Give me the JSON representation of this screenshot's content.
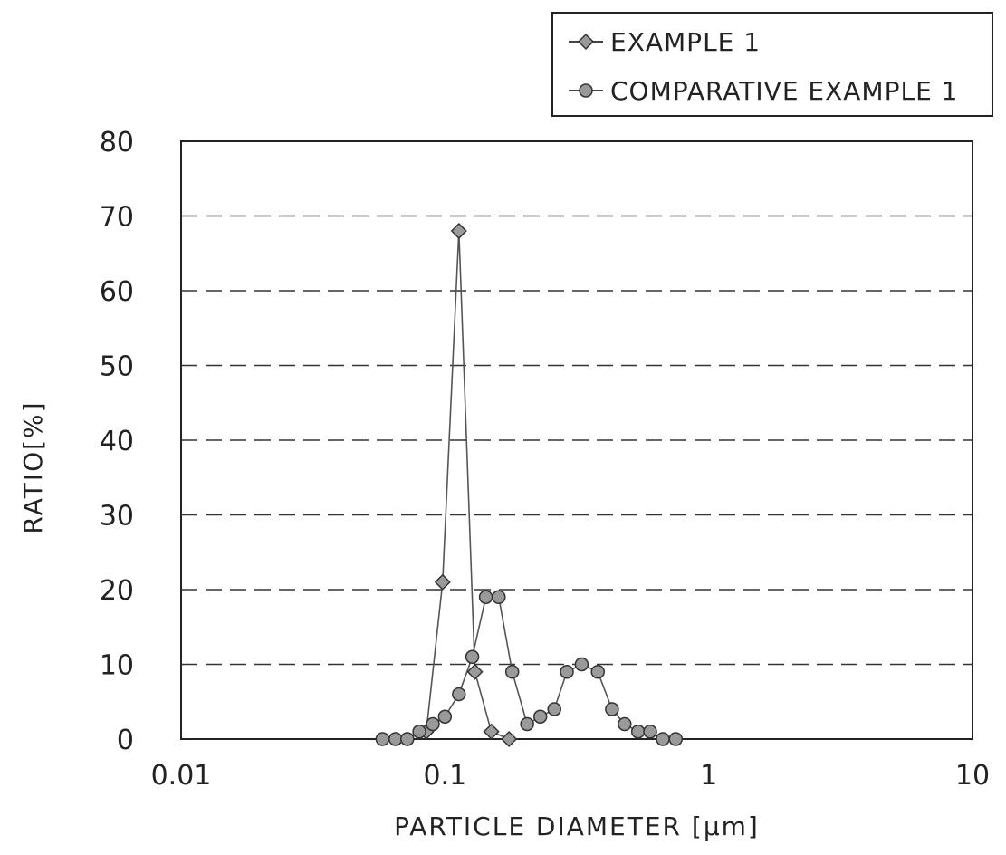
{
  "chart_data": {
    "type": "scatter",
    "title": "",
    "xlabel": "PARTICLE DIAMETER [μm]",
    "ylabel": "RATIO[%]",
    "xscale": "log",
    "xlim": [
      0.01,
      10
    ],
    "ylim": [
      0,
      80
    ],
    "xticks": [
      0.01,
      0.1,
      1,
      10
    ],
    "xtick_labels": [
      "0.01",
      "0.1",
      "1",
      "10"
    ],
    "yticks": [
      0,
      10,
      20,
      30,
      40,
      50,
      60,
      70,
      80
    ],
    "ytick_labels": [
      "0",
      "10",
      "20",
      "30",
      "40",
      "50",
      "60",
      "70",
      "80"
    ],
    "grid": "horizontal dashed",
    "legend_position": "top-right, above plot",
    "series": [
      {
        "name": "EXAMPLE 1",
        "marker": "diamond",
        "x": [
          0.085,
          0.098,
          0.113,
          0.13,
          0.15,
          0.175
        ],
        "y": [
          1,
          21,
          68,
          9,
          1,
          0
        ]
      },
      {
        "name": "COMPARATIVE EXAMPLE 1",
        "marker": "circle",
        "x": [
          0.058,
          0.065,
          0.072,
          0.08,
          0.09,
          0.1,
          0.113,
          0.127,
          0.143,
          0.16,
          0.18,
          0.205,
          0.23,
          0.26,
          0.29,
          0.33,
          0.38,
          0.43,
          0.48,
          0.54,
          0.6,
          0.67,
          0.75
        ],
        "y": [
          0,
          0,
          0,
          1,
          2,
          3,
          6,
          11,
          19,
          19,
          9,
          2,
          3,
          4,
          9,
          10,
          9,
          4,
          2,
          1,
          1,
          0,
          0
        ]
      }
    ]
  }
}
